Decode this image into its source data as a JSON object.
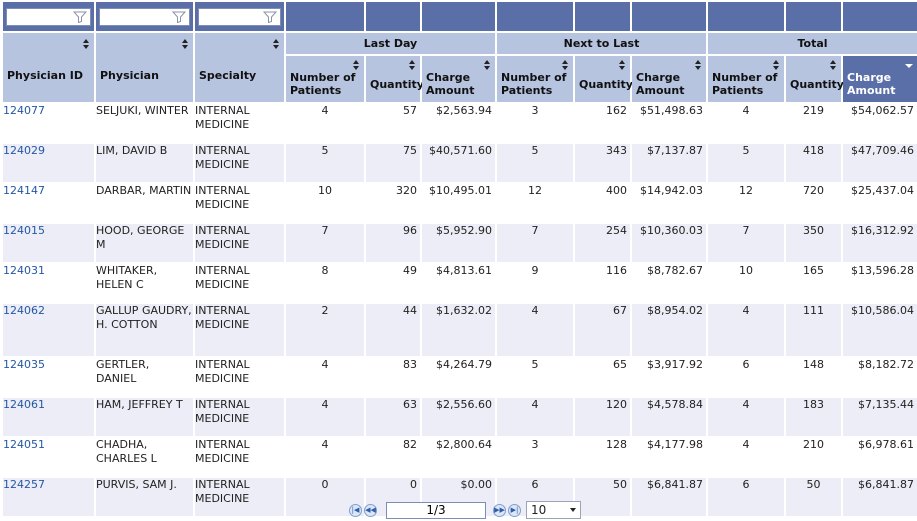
{
  "filters": {
    "physician_id": "",
    "physician": "",
    "specialty": ""
  },
  "headers": {
    "physician_id": "Physician ID",
    "physician": "Physician",
    "specialty": "Specialty",
    "groups": [
      "Last Day",
      "Next to Last",
      "Total"
    ],
    "number_of_patients": "Number of Patients",
    "quantity": "Quantity",
    "charge_amount": "Charge Amount"
  },
  "rows": [
    {
      "id": "124077",
      "physician": "SELJUKI, WINTER",
      "specialty": "INTERNAL MEDICINE",
      "ld_patients": "4",
      "ld_qty": "57",
      "ld_charge": "$2,563.94",
      "nl_patients": "3",
      "nl_qty": "162",
      "nl_charge": "$51,498.63",
      "t_patients": "4",
      "t_qty": "219",
      "t_charge": "$54,062.57"
    },
    {
      "id": "124029",
      "physician": "LIM, DAVID B",
      "specialty": "INTERNAL MEDICINE",
      "ld_patients": "5",
      "ld_qty": "75",
      "ld_charge": "$40,571.60",
      "nl_patients": "5",
      "nl_qty": "343",
      "nl_charge": "$7,137.87",
      "t_patients": "5",
      "t_qty": "418",
      "t_charge": "$47,709.46"
    },
    {
      "id": "124147",
      "physician": "DARBAR, MARTIN",
      "specialty": "INTERNAL MEDICINE",
      "ld_patients": "10",
      "ld_qty": "320",
      "ld_charge": "$10,495.01",
      "nl_patients": "12",
      "nl_qty": "400",
      "nl_charge": "$14,942.03",
      "t_patients": "12",
      "t_qty": "720",
      "t_charge": "$25,437.04"
    },
    {
      "id": "124015",
      "physician": "HOOD, GEORGE M",
      "specialty": "INTERNAL MEDICINE",
      "ld_patients": "7",
      "ld_qty": "96",
      "ld_charge": "$5,952.90",
      "nl_patients": "7",
      "nl_qty": "254",
      "nl_charge": "$10,360.03",
      "t_patients": "7",
      "t_qty": "350",
      "t_charge": "$16,312.92"
    },
    {
      "id": "124031",
      "physician": "WHITAKER, HELEN C",
      "specialty": "INTERNAL MEDICINE",
      "ld_patients": "8",
      "ld_qty": "49",
      "ld_charge": "$4,813.61",
      "nl_patients": "9",
      "nl_qty": "116",
      "nl_charge": "$8,782.67",
      "t_patients": "10",
      "t_qty": "165",
      "t_charge": "$13,596.28"
    },
    {
      "id": "124062",
      "physician": "GALLUP GAUDRY, H. COTTON",
      "specialty": "INTERNAL MEDICINE",
      "ld_patients": "2",
      "ld_qty": "44",
      "ld_charge": "$1,632.02",
      "nl_patients": "4",
      "nl_qty": "67",
      "nl_charge": "$8,954.02",
      "t_patients": "4",
      "t_qty": "111",
      "t_charge": "$10,586.04"
    },
    {
      "id": "124035",
      "physician": "GERTLER, DANIEL",
      "specialty": "INTERNAL MEDICINE",
      "ld_patients": "4",
      "ld_qty": "83",
      "ld_charge": "$4,264.79",
      "nl_patients": "5",
      "nl_qty": "65",
      "nl_charge": "$3,917.92",
      "t_patients": "6",
      "t_qty": "148",
      "t_charge": "$8,182.72"
    },
    {
      "id": "124061",
      "physician": "HAM, JEFFREY T",
      "specialty": "INTERNAL MEDICINE",
      "ld_patients": "4",
      "ld_qty": "63",
      "ld_charge": "$2,556.60",
      "nl_patients": "4",
      "nl_qty": "120",
      "nl_charge": "$4,578.84",
      "t_patients": "4",
      "t_qty": "183",
      "t_charge": "$7,135.44"
    },
    {
      "id": "124051",
      "physician": "CHADHA, CHARLES L",
      "specialty": "INTERNAL MEDICINE",
      "ld_patients": "4",
      "ld_qty": "82",
      "ld_charge": "$2,800.64",
      "nl_patients": "3",
      "nl_qty": "128",
      "nl_charge": "$4,177.98",
      "t_patients": "4",
      "t_qty": "210",
      "t_charge": "$6,978.61"
    },
    {
      "id": "124257",
      "physician": "PURVIS, SAM J.",
      "specialty": "INTERNAL MEDICINE",
      "ld_patients": "0",
      "ld_qty": "0",
      "ld_charge": "$0.00",
      "nl_patients": "6",
      "nl_qty": "50",
      "nl_charge": "$6,841.87",
      "t_patients": "6",
      "t_qty": "50",
      "t_charge": "$6,841.87"
    }
  ],
  "pager": {
    "page_display": "1/3",
    "page_size": "10",
    "icons": [
      "first-page-icon",
      "prev-page-icon",
      "next-page-icon",
      "last-page-icon"
    ]
  },
  "colors": {
    "header_bg": "#b6c4e0",
    "header_dark": "#5a6fa8",
    "row_alt": "#ecedf6",
    "link": "#2457a6"
  }
}
